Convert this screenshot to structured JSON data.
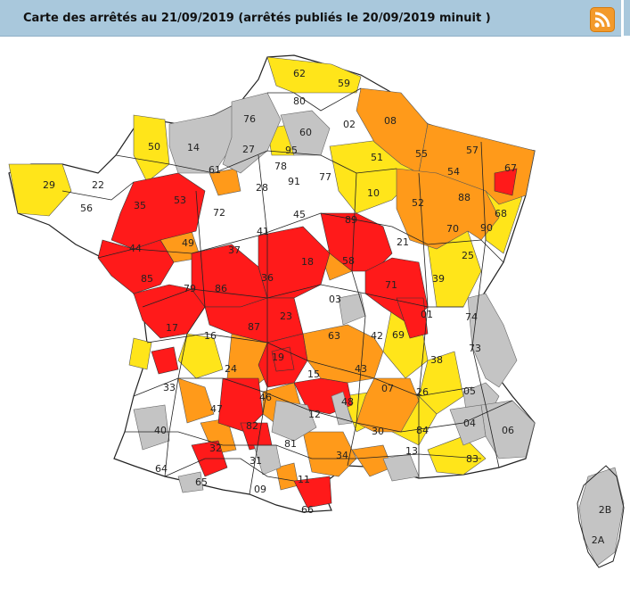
{
  "header": {
    "title": "Carte des arrêtés au 21/09/2019 (arrêtés publiés le 20/09/2019 minuit )",
    "rss_icon": "rss-feed-icon"
  },
  "colors": {
    "header_bg": "#a9c8dc",
    "rss": "#f39a2b",
    "none": "#ffffff",
    "vigilance": "#c4c4c4",
    "alerte": "#ffe51a",
    "alerte_renforcee": "#ff9a1a",
    "crise": "#ff1a1a"
  },
  "map": {
    "departments": [
      {
        "code": "62"
      },
      {
        "code": "59"
      },
      {
        "code": "80"
      },
      {
        "code": "02"
      },
      {
        "code": "08"
      },
      {
        "code": "76"
      },
      {
        "code": "60"
      },
      {
        "code": "14"
      },
      {
        "code": "50"
      },
      {
        "code": "27"
      },
      {
        "code": "95"
      },
      {
        "code": "78"
      },
      {
        "code": "91"
      },
      {
        "code": "77"
      },
      {
        "code": "51"
      },
      {
        "code": "55"
      },
      {
        "code": "57"
      },
      {
        "code": "67"
      },
      {
        "code": "54"
      },
      {
        "code": "61"
      },
      {
        "code": "29"
      },
      {
        "code": "22"
      },
      {
        "code": "56"
      },
      {
        "code": "35"
      },
      {
        "code": "53"
      },
      {
        "code": "72"
      },
      {
        "code": "28"
      },
      {
        "code": "10"
      },
      {
        "code": "52"
      },
      {
        "code": "88"
      },
      {
        "code": "68"
      },
      {
        "code": "45"
      },
      {
        "code": "89"
      },
      {
        "code": "44"
      },
      {
        "code": "49"
      },
      {
        "code": "37"
      },
      {
        "code": "41"
      },
      {
        "code": "21"
      },
      {
        "code": "70"
      },
      {
        "code": "90"
      },
      {
        "code": "25"
      },
      {
        "code": "18"
      },
      {
        "code": "58"
      },
      {
        "code": "71"
      },
      {
        "code": "39"
      },
      {
        "code": "85"
      },
      {
        "code": "79"
      },
      {
        "code": "86"
      },
      {
        "code": "36"
      },
      {
        "code": "03"
      },
      {
        "code": "01"
      },
      {
        "code": "74"
      },
      {
        "code": "17"
      },
      {
        "code": "16"
      },
      {
        "code": "87"
      },
      {
        "code": "23"
      },
      {
        "code": "63"
      },
      {
        "code": "42"
      },
      {
        "code": "69"
      },
      {
        "code": "73"
      },
      {
        "code": "38"
      },
      {
        "code": "24"
      },
      {
        "code": "19"
      },
      {
        "code": "15"
      },
      {
        "code": "43"
      },
      {
        "code": "33"
      },
      {
        "code": "07"
      },
      {
        "code": "26"
      },
      {
        "code": "05"
      },
      {
        "code": "46"
      },
      {
        "code": "47"
      },
      {
        "code": "48"
      },
      {
        "code": "12"
      },
      {
        "code": "04"
      },
      {
        "code": "06"
      },
      {
        "code": "40"
      },
      {
        "code": "82"
      },
      {
        "code": "30"
      },
      {
        "code": "84"
      },
      {
        "code": "81"
      },
      {
        "code": "32"
      },
      {
        "code": "13"
      },
      {
        "code": "83"
      },
      {
        "code": "34"
      },
      {
        "code": "64"
      },
      {
        "code": "65"
      },
      {
        "code": "31"
      },
      {
        "code": "11"
      },
      {
        "code": "09"
      },
      {
        "code": "66"
      },
      {
        "code": "2B"
      },
      {
        "code": "2A"
      }
    ]
  }
}
